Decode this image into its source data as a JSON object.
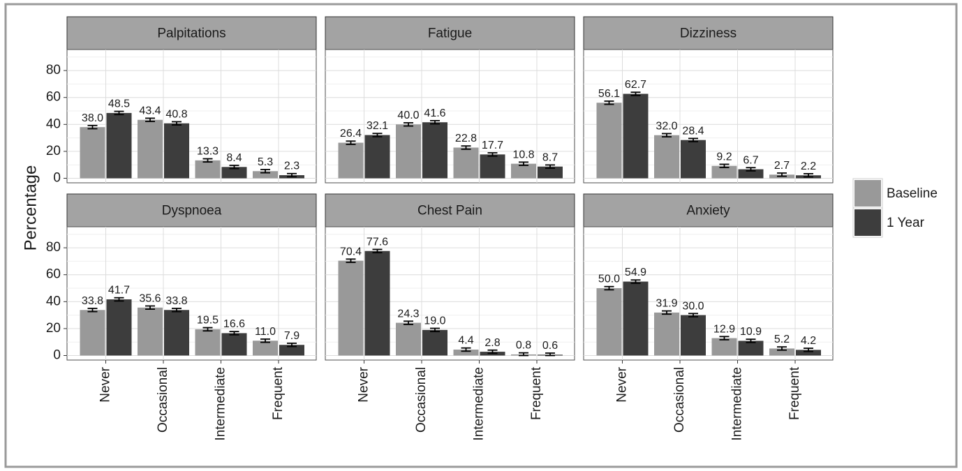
{
  "chart_data": {
    "type": "bar",
    "ylabel": "Percentage",
    "ylim": [
      0,
      100
    ],
    "yticks": [
      "0",
      "20",
      "40",
      "60",
      "80"
    ],
    "categories": [
      "Never",
      "Occasional",
      "Intermediate",
      "Frequent"
    ],
    "legend": {
      "placement": "right",
      "items": [
        {
          "name": "Baseline",
          "color": "#999999"
        },
        {
          "name": "1 Year",
          "color": "#3d3d3d"
        }
      ]
    },
    "error_half_width": 1.2,
    "panels": [
      {
        "title": "Palpitations",
        "series": [
          {
            "name": "Baseline",
            "values": [
              38.0,
              43.4,
              13.3,
              5.3
            ],
            "labels": [
              "38.0",
              "43.4",
              "13.3",
              "5.3"
            ]
          },
          {
            "name": "1 Year",
            "values": [
              48.5,
              40.8,
              8.4,
              2.3
            ],
            "labels": [
              "48.5",
              "40.8",
              "8.4",
              "2.3"
            ]
          }
        ]
      },
      {
        "title": "Fatigue",
        "series": [
          {
            "name": "Baseline",
            "values": [
              26.4,
              40.0,
              22.8,
              10.8
            ],
            "labels": [
              "26.4",
              "40.0",
              "22.8",
              "10.8"
            ]
          },
          {
            "name": "1 Year",
            "values": [
              32.1,
              41.6,
              17.7,
              8.7
            ],
            "labels": [
              "32.1",
              "41.6",
              "17.7",
              "8.7"
            ]
          }
        ]
      },
      {
        "title": "Dizziness",
        "series": [
          {
            "name": "Baseline",
            "values": [
              56.1,
              32.0,
              9.2,
              2.7
            ],
            "labels": [
              "56.1",
              "32.0",
              "9.2",
              "2.7"
            ]
          },
          {
            "name": "1 Year",
            "values": [
              62.7,
              28.4,
              6.7,
              2.2
            ],
            "labels": [
              "62.7",
              "28.4",
              "6.7",
              "2.2"
            ]
          }
        ]
      },
      {
        "title": "Dyspnoea",
        "series": [
          {
            "name": "Baseline",
            "values": [
              33.8,
              35.6,
              19.5,
              11.0
            ],
            "labels": [
              "33.8",
              "35.6",
              "19.5",
              "11.0"
            ]
          },
          {
            "name": "1 Year",
            "values": [
              41.7,
              33.8,
              16.6,
              7.9
            ],
            "labels": [
              "41.7",
              "33.8",
              "16.6",
              "7.9"
            ]
          }
        ]
      },
      {
        "title": "Chest Pain",
        "series": [
          {
            "name": "Baseline",
            "values": [
              70.4,
              24.3,
              4.4,
              0.8
            ],
            "labels": [
              "70.4",
              "24.3",
              "4.4",
              "0.8"
            ]
          },
          {
            "name": "1 Year",
            "values": [
              77.6,
              19.0,
              2.8,
              0.6
            ],
            "labels": [
              "77.6",
              "19.0",
              "2.8",
              "0.6"
            ]
          }
        ]
      },
      {
        "title": "Anxiety",
        "series": [
          {
            "name": "Baseline",
            "values": [
              50.0,
              31.9,
              12.9,
              5.2
            ],
            "labels": [
              "50.0",
              "31.9",
              "12.9",
              "5.2"
            ]
          },
          {
            "name": "1 Year",
            "values": [
              54.9,
              30.0,
              10.9,
              4.2
            ],
            "labels": [
              "54.9",
              "30.0",
              "10.9",
              "4.2"
            ]
          }
        ]
      }
    ]
  }
}
